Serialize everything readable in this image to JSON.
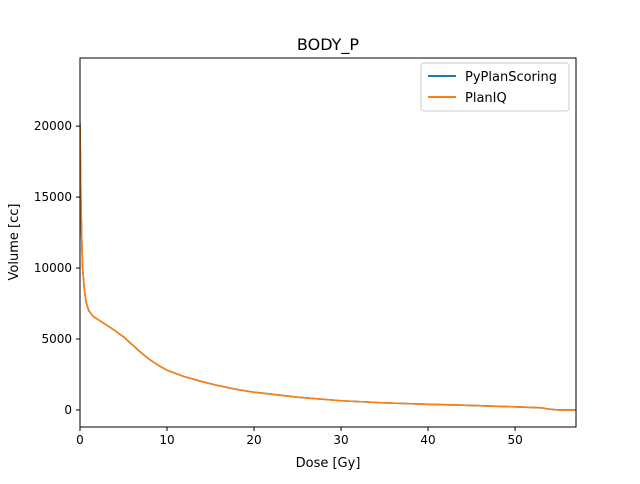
{
  "chart_data": {
    "type": "line",
    "title": "BODY_P",
    "xlabel": "Dose [Gy]",
    "ylabel": "Volume [cc]",
    "xlim": [
      0,
      57
    ],
    "ylim": [
      -1200,
      24800
    ],
    "xticks": [
      0,
      10,
      20,
      30,
      40,
      50
    ],
    "yticks": [
      0,
      5000,
      10000,
      15000,
      20000
    ],
    "grid": false,
    "legend_position": "top-right",
    "series": [
      {
        "name": "PyPlanScoring",
        "color": "#1f77b4",
        "x": [
          0,
          0.1,
          0.2,
          0.3,
          0.5,
          0.7,
          1,
          1.5,
          2,
          3,
          4,
          5,
          6,
          7,
          8,
          9,
          10,
          12,
          14,
          16,
          18,
          20,
          25,
          30,
          35,
          40,
          45,
          50,
          53,
          54,
          55,
          56,
          57
        ],
        "y": [
          20200,
          15000,
          12000,
          10000,
          8500,
          7600,
          7000,
          6600,
          6400,
          6000,
          5600,
          5150,
          4600,
          4050,
          3550,
          3150,
          2800,
          2350,
          2000,
          1700,
          1450,
          1250,
          900,
          650,
          500,
          400,
          320,
          220,
          150,
          50,
          0,
          0,
          0
        ]
      },
      {
        "name": "PlanIQ",
        "color": "#ff7f0e",
        "x": [
          0,
          0.1,
          0.2,
          0.3,
          0.5,
          0.7,
          1,
          1.5,
          2,
          3,
          4,
          5,
          6,
          7,
          8,
          9,
          10,
          12,
          14,
          16,
          18,
          20,
          25,
          30,
          35,
          40,
          45,
          50,
          53,
          54,
          55,
          56,
          57
        ],
        "y": [
          20100,
          15000,
          12000,
          10000,
          8500,
          7600,
          7000,
          6600,
          6400,
          6000,
          5600,
          5150,
          4600,
          4050,
          3550,
          3150,
          2800,
          2350,
          2000,
          1700,
          1450,
          1250,
          900,
          650,
          500,
          400,
          320,
          220,
          150,
          50,
          0,
          0,
          0
        ]
      }
    ]
  }
}
